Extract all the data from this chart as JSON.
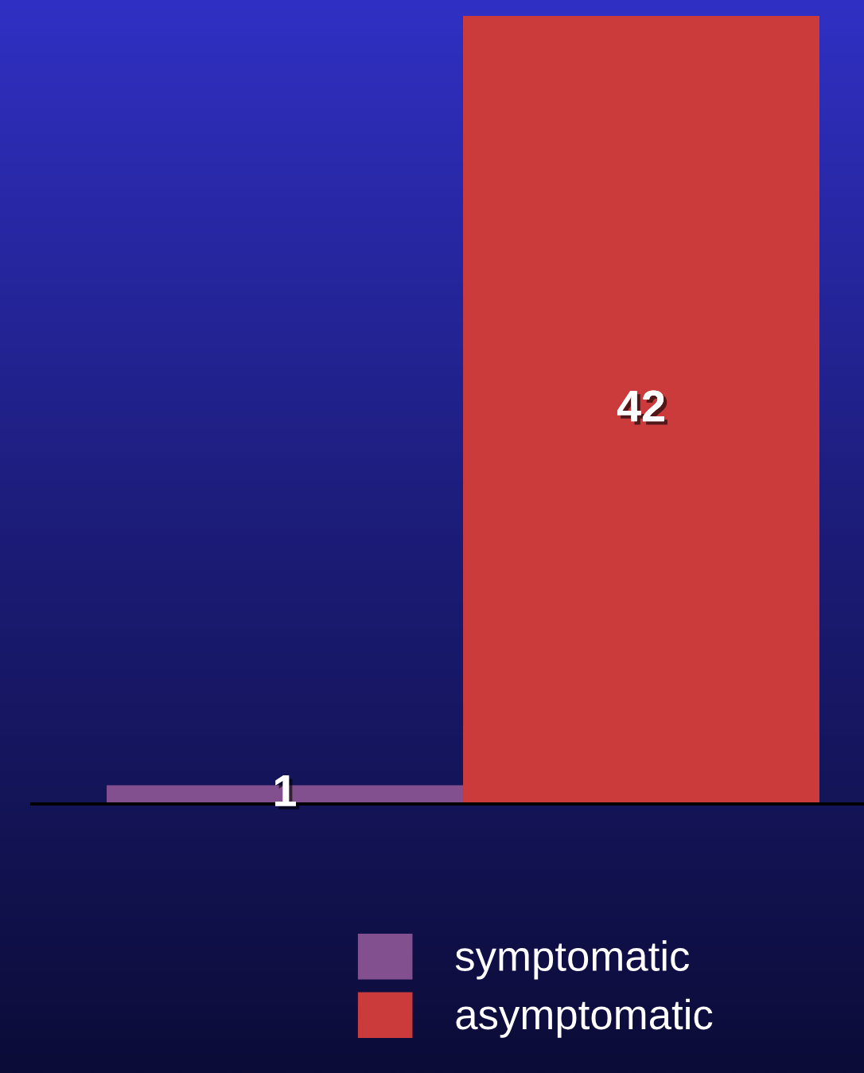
{
  "chart_data": {
    "type": "bar",
    "categories": [
      null
    ],
    "series": [
      {
        "name": "symptomatic",
        "color": "#82508f",
        "values": [
          1
        ]
      },
      {
        "name": "asymptomatic",
        "color": "#cc3b3c",
        "values": [
          42
        ]
      }
    ],
    "data_labels": true,
    "legend": "bottom",
    "grid": false
  }
}
